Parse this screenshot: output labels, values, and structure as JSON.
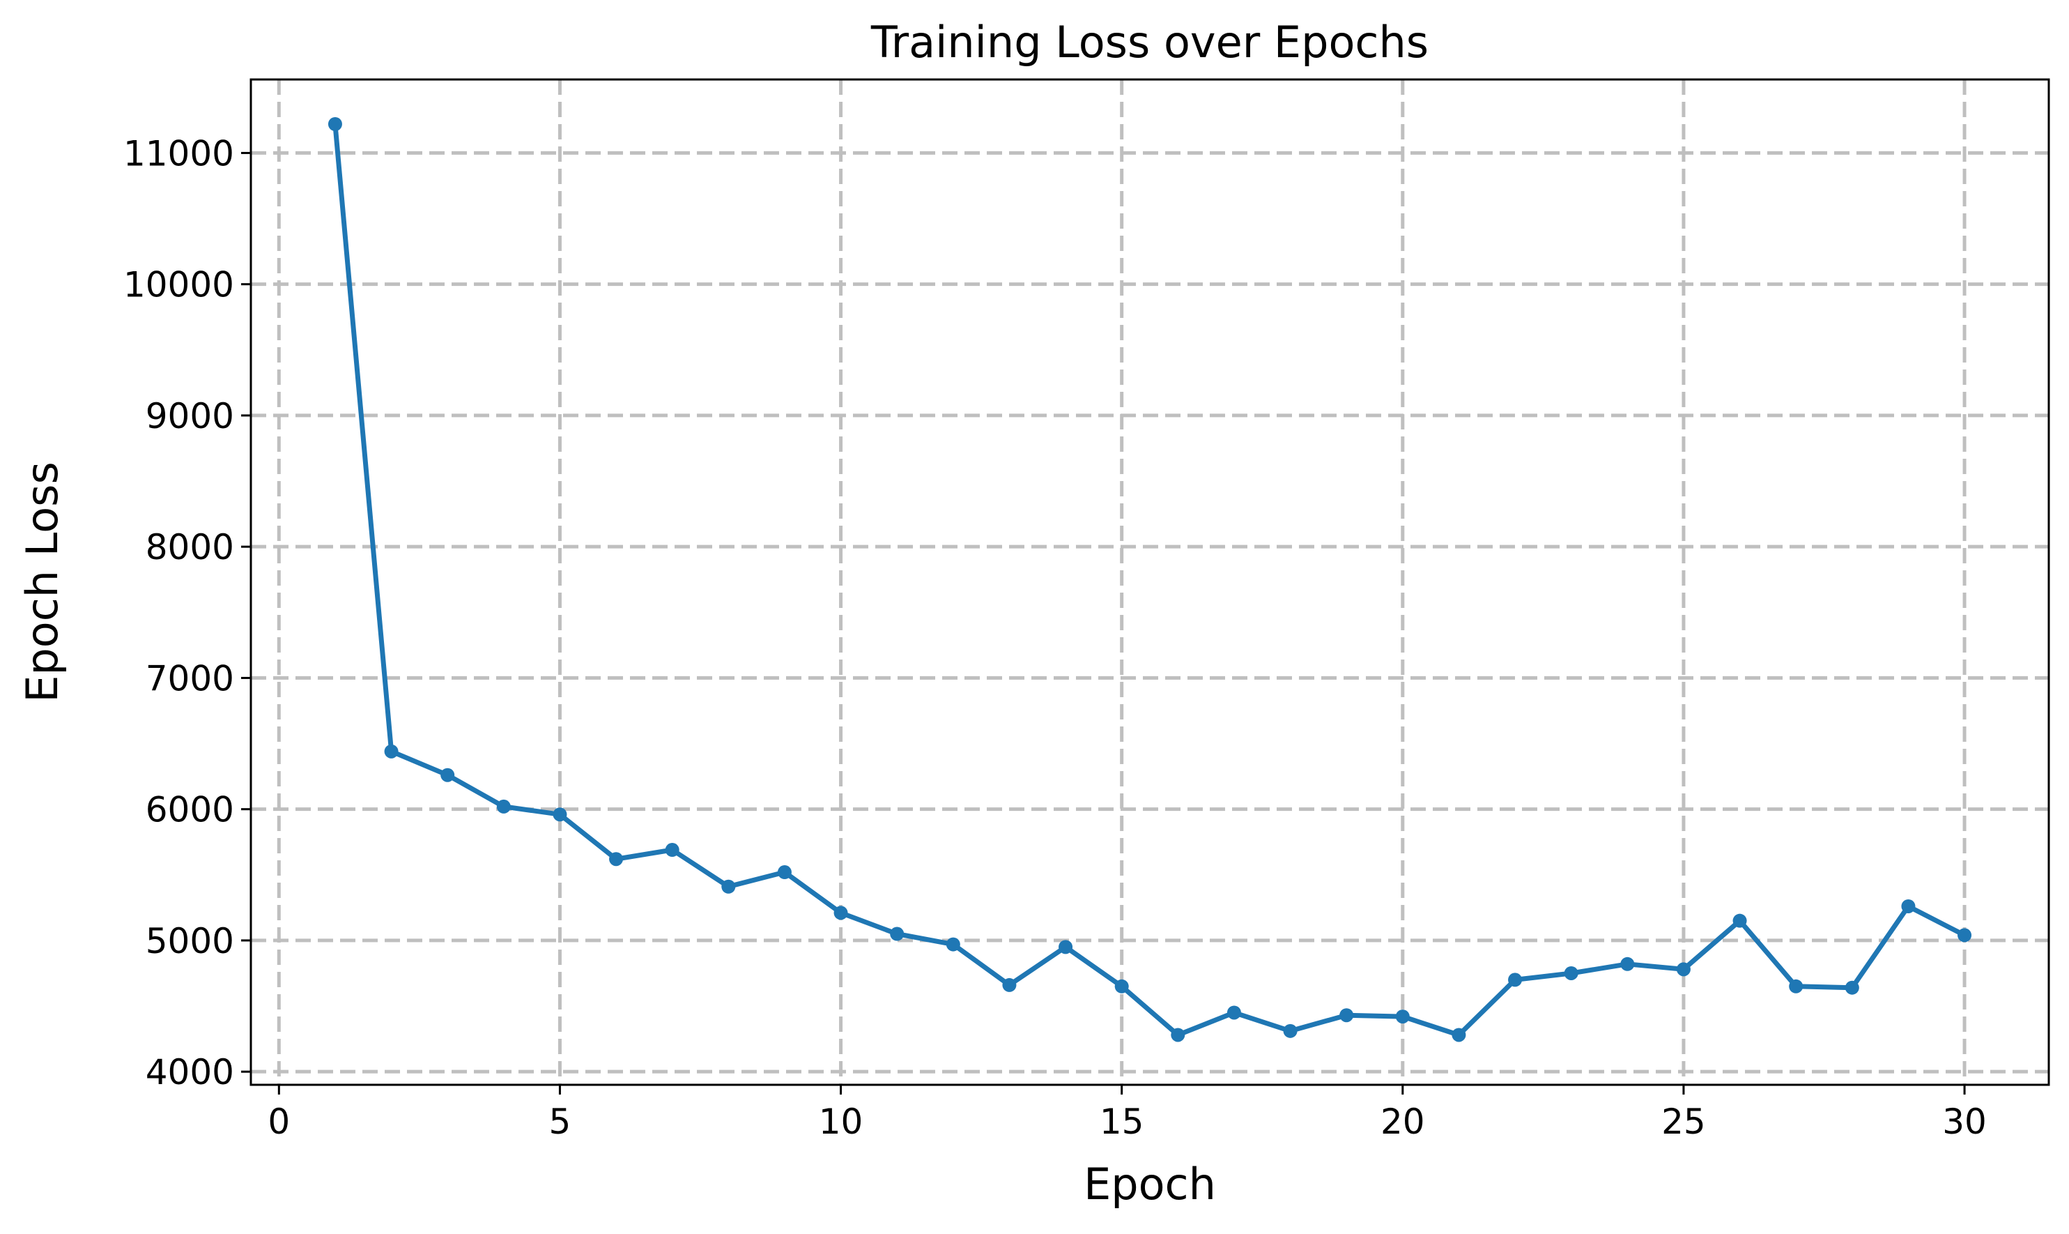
{
  "chart_data": {
    "type": "line",
    "title": "Training Loss over Epochs",
    "xlabel": "Epoch",
    "ylabel": "Epoch Loss",
    "xlim": [
      -0.5,
      31.5
    ],
    "ylim": [
      3900,
      11560
    ],
    "xticks": [
      0,
      5,
      10,
      15,
      20,
      25,
      30
    ],
    "yticks": [
      4000,
      5000,
      6000,
      7000,
      8000,
      9000,
      10000,
      11000
    ],
    "grid": true,
    "line_color": "#1f77b4",
    "grid_color": "#bfbfbf",
    "series": [
      {
        "x": [
          1,
          2,
          3,
          4,
          5,
          6,
          7,
          8,
          9,
          10,
          11,
          12,
          13,
          14,
          15,
          16,
          17,
          18,
          19,
          20,
          21,
          22,
          23,
          24,
          25,
          26,
          27,
          28,
          29,
          30
        ],
        "values": [
          11220,
          6440,
          6260,
          6020,
          5960,
          5620,
          5690,
          5410,
          5520,
          5210,
          5050,
          4970,
          4660,
          4950,
          4650,
          4280,
          4450,
          4310,
          4430,
          4420,
          4280,
          4700,
          4750,
          4820,
          4780,
          5150,
          4650,
          4640,
          5260,
          5040
        ]
      }
    ]
  }
}
